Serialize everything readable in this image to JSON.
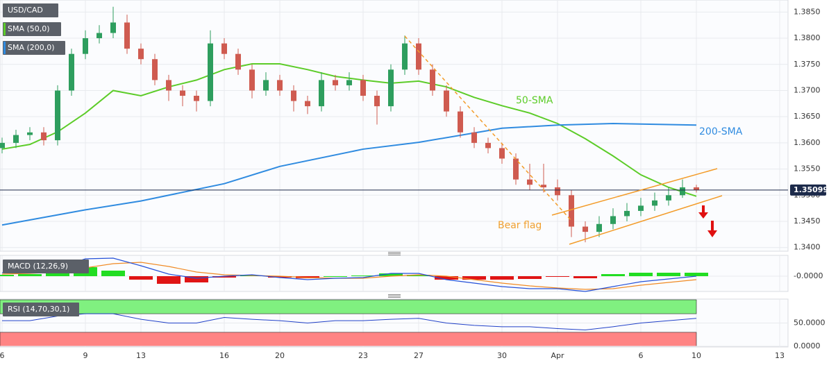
{
  "chart_data": [
    {
      "type": "candlestick",
      "title": "USD/CAD",
      "x": [
        0,
        0.5,
        1,
        1.5,
        2,
        2.5,
        3,
        3.5,
        4,
        4.5,
        5,
        5.5,
        6,
        6.5,
        7,
        7.5,
        8,
        8.5,
        9,
        9.5,
        10,
        10.5,
        11,
        11.5,
        12,
        12.5,
        13,
        13.5,
        14,
        14.5,
        15,
        15.5,
        16,
        16.5,
        17,
        17.5,
        18,
        18.5,
        19,
        19.5,
        20,
        20.5,
        21,
        21.5,
        22,
        22.5,
        23,
        23.5,
        24,
        24.5,
        25
      ],
      "open": [
        1.359,
        1.36,
        1.3615,
        1.362,
        1.3605,
        1.37,
        1.377,
        1.38,
        1.381,
        1.383,
        1.378,
        1.376,
        1.372,
        1.37,
        1.369,
        1.368,
        1.379,
        1.377,
        1.374,
        1.37,
        1.372,
        1.37,
        1.368,
        1.367,
        1.372,
        1.371,
        1.372,
        1.369,
        1.367,
        1.374,
        1.379,
        1.374,
        1.37,
        1.366,
        1.362,
        1.36,
        1.359,
        1.357,
        1.353,
        1.352,
        1.3515,
        1.35,
        1.344,
        1.343,
        1.3445,
        1.346,
        1.347,
        1.348,
        1.349,
        1.35,
        1.3515
      ],
      "high": [
        1.361,
        1.3625,
        1.363,
        1.363,
        1.371,
        1.378,
        1.3815,
        1.3825,
        1.386,
        1.3845,
        1.379,
        1.377,
        1.373,
        1.371,
        1.37,
        1.3815,
        1.38,
        1.378,
        1.375,
        1.3735,
        1.373,
        1.371,
        1.369,
        1.3735,
        1.373,
        1.3735,
        1.373,
        1.37,
        1.375,
        1.3805,
        1.38,
        1.375,
        1.371,
        1.367,
        1.363,
        1.361,
        1.36,
        1.358,
        1.356,
        1.356,
        1.353,
        1.351,
        1.345,
        1.346,
        1.3475,
        1.3485,
        1.3495,
        1.3505,
        1.3515,
        1.353,
        1.352
      ],
      "low": [
        1.358,
        1.359,
        1.3605,
        1.3595,
        1.3595,
        1.369,
        1.376,
        1.379,
        1.38,
        1.377,
        1.375,
        1.371,
        1.368,
        1.367,
        1.366,
        1.367,
        1.376,
        1.373,
        1.3685,
        1.369,
        1.369,
        1.366,
        1.3655,
        1.366,
        1.37,
        1.37,
        1.368,
        1.3635,
        1.366,
        1.373,
        1.373,
        1.369,
        1.365,
        1.361,
        1.359,
        1.358,
        1.356,
        1.352,
        1.351,
        1.3505,
        1.349,
        1.342,
        1.341,
        1.342,
        1.3435,
        1.345,
        1.346,
        1.347,
        1.348,
        1.3495,
        1.3505
      ],
      "close": [
        1.36,
        1.3615,
        1.362,
        1.3605,
        1.37,
        1.377,
        1.38,
        1.381,
        1.383,
        1.378,
        1.376,
        1.372,
        1.37,
        1.369,
        1.368,
        1.379,
        1.377,
        1.374,
        1.37,
        1.372,
        1.37,
        1.368,
        1.367,
        1.372,
        1.371,
        1.372,
        1.369,
        1.367,
        1.374,
        1.379,
        1.374,
        1.37,
        1.366,
        1.362,
        1.36,
        1.359,
        1.357,
        1.353,
        1.352,
        1.3515,
        1.35,
        1.344,
        1.343,
        1.3445,
        1.346,
        1.347,
        1.348,
        1.349,
        1.35,
        1.3515,
        1.351
      ],
      "up_color": "#2e9e5e",
      "down_color": "#cf5b50",
      "xlim": [
        -0.075,
        28.3
      ],
      "xticks": [
        {
          "value": 0,
          "label": "6"
        },
        {
          "value": 3,
          "label": "9"
        },
        {
          "value": 5,
          "label": "13"
        },
        {
          "value": 8,
          "label": "16"
        },
        {
          "value": 10,
          "label": "20"
        },
        {
          "value": 13,
          "label": "23"
        },
        {
          "value": 15,
          "label": "27"
        },
        {
          "value": 18,
          "label": "30"
        },
        {
          "value": 20,
          "label": "Apr"
        },
        {
          "value": 23,
          "label": "6"
        },
        {
          "value": 25,
          "label": "10"
        },
        {
          "value": 28,
          "label": "13"
        }
      ],
      "ylim": [
        1.3393,
        1.3873
      ],
      "yticks": [
        {
          "value": 1.34,
          "label": "1.3400"
        },
        {
          "value": 1.345,
          "label": "1.3450"
        },
        {
          "value": 1.35,
          "label": "1.3500"
        },
        {
          "value": 1.355,
          "label": "1.3550"
        },
        {
          "value": 1.36,
          "label": "1.3600"
        },
        {
          "value": 1.365,
          "label": "1.3650"
        },
        {
          "value": 1.37,
          "label": "1.3700"
        },
        {
          "value": 1.375,
          "label": "1.3750"
        },
        {
          "value": 1.38,
          "label": "1.3800"
        },
        {
          "value": 1.385,
          "label": "1.3850"
        }
      ],
      "grid": true,
      "current_price": 1.35099,
      "overlays": [
        {
          "name": "SMA (50,0)",
          "label": "50-SMA",
          "color": "#5ccc28",
          "x": [
            0,
            1,
            2,
            3,
            4,
            5,
            6,
            7,
            8,
            9,
            10,
            11,
            12,
            13,
            14,
            15,
            16,
            17,
            18,
            19,
            20,
            21,
            22,
            23,
            24,
            25
          ],
          "values": [
            1.3588,
            1.3597,
            1.3621,
            1.3657,
            1.37,
            1.369,
            1.3707,
            1.372,
            1.374,
            1.3751,
            1.3751,
            1.374,
            1.3727,
            1.372,
            1.3714,
            1.3718,
            1.3707,
            1.3687,
            1.3671,
            1.3657,
            1.3637,
            1.3608,
            1.3575,
            1.3539,
            1.3515,
            1.3498
          ]
        },
        {
          "name": "SMA (200,0)",
          "label": "200-SMA",
          "color": "#2f8be0",
          "x": [
            0,
            3,
            5,
            8,
            10,
            13,
            15,
            18,
            20,
            22,
            25
          ],
          "values": [
            1.3443,
            1.3472,
            1.3489,
            1.3522,
            1.3555,
            1.3588,
            1.3601,
            1.3628,
            1.3634,
            1.3637,
            1.3634
          ]
        }
      ],
      "annotation": "Bear flag",
      "annotation_color": "#f0a030"
    },
    {
      "type": "macd",
      "title": "MACD (12,26,9)",
      "x": [
        0,
        1,
        2,
        3,
        4,
        5,
        6,
        7,
        8,
        9,
        10,
        11,
        12,
        13,
        14,
        15,
        16,
        17,
        18,
        19,
        20,
        21,
        22,
        23,
        24,
        25
      ],
      "macd": {
        "color": "#2450d8",
        "values": [
          0.0005,
          0.0007,
          0.0012,
          0.0025,
          0.0026,
          0.0015,
          0.0003,
          -0.0003,
          0,
          0.0002,
          -0.0002,
          -0.0005,
          -0.0003,
          -0.0002,
          0.0004,
          0.0004,
          -0.0005,
          -0.001,
          -0.0015,
          -0.0018,
          -0.0018,
          -0.0022,
          -0.0015,
          -0.0008,
          -0.0004,
          0
        ]
      },
      "signal": {
        "color": "#f08a24",
        "values": [
          0.0003,
          0.0004,
          0.0006,
          0.0012,
          0.0018,
          0.002,
          0.0014,
          0.0006,
          0.0002,
          0.0001,
          0,
          -0.0002,
          -0.0003,
          -0.0003,
          0,
          0.0002,
          0,
          -0.0005,
          -0.001,
          -0.0014,
          -0.0017,
          -0.0019,
          -0.0018,
          -0.0013,
          -0.0009,
          -0.0005
        ]
      },
      "histogram": {
        "up_color": "#22dd22",
        "down_color": "#e01515",
        "values": [
          0.0002,
          0.0003,
          0.0006,
          0.0013,
          0.0008,
          -0.0005,
          -0.0011,
          -0.0009,
          -0.0002,
          0.0001,
          -0.0002,
          -0.0003,
          0,
          0.0001,
          0.0004,
          0.0002,
          -0.0005,
          -0.0005,
          -0.0005,
          -0.0004,
          -0.0001,
          -0.0003,
          0.0003,
          0.0005,
          0.0005,
          0.0005
        ]
      },
      "ylim": [
        -0.0022,
        0.003
      ],
      "yticks": [
        {
          "value": 0,
          "label": "-0.0000"
        }
      ]
    },
    {
      "type": "rsi",
      "title": "RSI (14,70,30,1)",
      "x": [
        0,
        1,
        2,
        3,
        4,
        5,
        6,
        7,
        8,
        9,
        10,
        11,
        12,
        13,
        14,
        15,
        16,
        17,
        18,
        19,
        20,
        21,
        22,
        23,
        24,
        25
      ],
      "values": [
        55,
        55,
        65,
        70,
        70,
        58,
        50,
        50,
        62,
        58,
        55,
        50,
        55,
        55,
        58,
        60,
        50,
        45,
        42,
        42,
        38,
        35,
        42,
        50,
        55,
        60
      ],
      "color": "#2040c8",
      "bands": [
        {
          "from": 70,
          "to": 100,
          "color": "#80f080"
        },
        {
          "from": 0,
          "to": 30,
          "color": "#ff8484"
        }
      ],
      "ylim": [
        -1.5,
        101.5
      ],
      "yticks": [
        {
          "value": 50,
          "label": "50.0000"
        },
        {
          "value": 0,
          "label": "0.0000"
        }
      ]
    }
  ]
}
